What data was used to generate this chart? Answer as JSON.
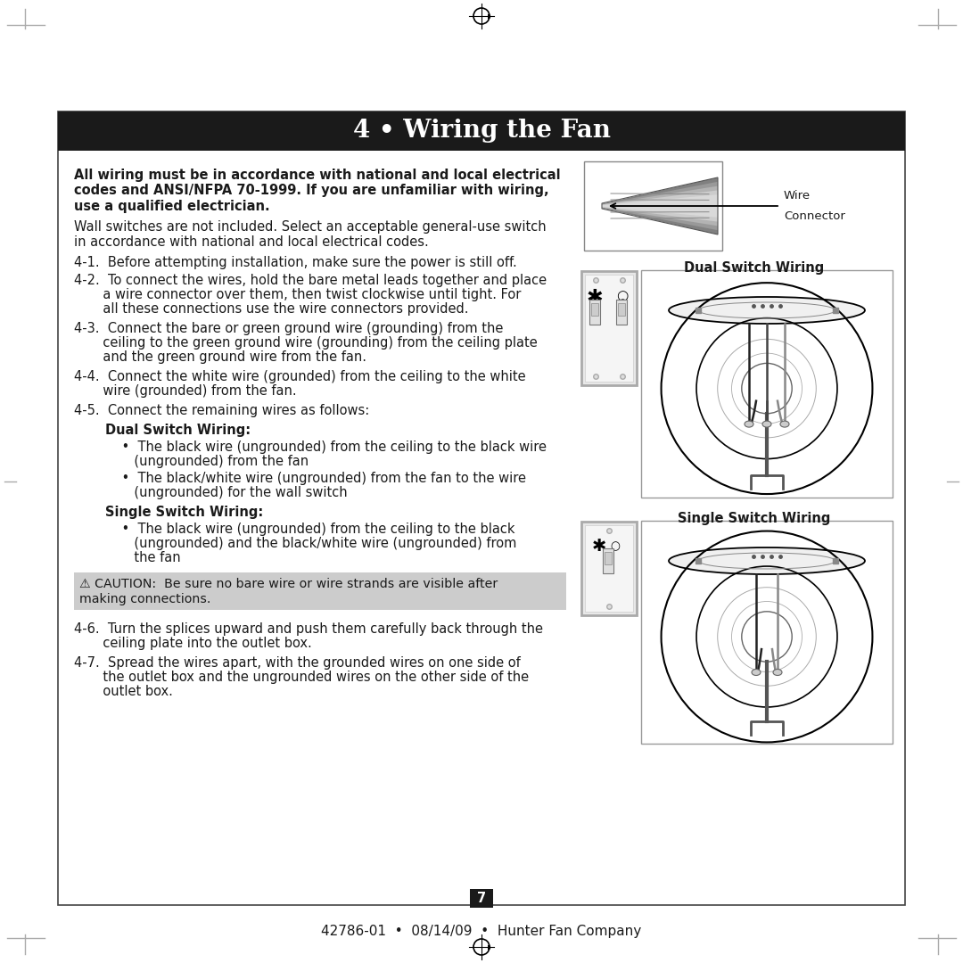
{
  "page_bg": "#ffffff",
  "title_bg": "#1a1a1a",
  "title_text": "4 • Wiring the Fan",
  "title_color": "#ffffff",
  "title_fontsize": 20,
  "bold_intro": "All wiring must be in accordance with national and local electrical\ncodes and ANSI/NFPA 70-1999. If you are unfamiliar with wiring,\nuse a qualified electrician.",
  "intro_text": "Wall switches are not included. Select an acceptable general-use switch\nin accordance with national and local electrical codes.",
  "step1": "4-1.  Before attempting installation, make sure the power is still off.",
  "step2_line1": "4-2.  To connect the wires, hold the bare metal leads together and place",
  "step2_line2": "       a wire connector over them, then twist clockwise until tight. For",
  "step2_line3": "       all these connections use the wire connectors provided.",
  "step3_line1": "4-3.  Connect the bare or green ground wire (grounding) from the",
  "step3_line2": "       ceiling to the green ground wire (grounding) from the ceiling plate",
  "step3_line3": "       and the green ground wire from the fan.",
  "step4_line1": "4-4.  Connect the white wire (grounded) from the ceiling to the white",
  "step4_line2": "       wire (grounded) from the fan.",
  "step5": "4-5.  Connect the remaining wires as follows:",
  "dual_label": "Dual Switch Wiring:",
  "dual_b1_1": "    •  The black wire (ungrounded) from the ceiling to the black wire",
  "dual_b1_2": "       (ungrounded) from the fan",
  "dual_b2_1": "    •  The black/white wire (ungrounded) from the fan to the wire",
  "dual_b2_2": "       (ungrounded) for the wall switch",
  "single_label": "Single Switch Wiring:",
  "single_b1_1": "    •  The black wire (ungrounded) from the ceiling to the black",
  "single_b1_2": "       (ungrounded) and the black/white wire (ungrounded) from",
  "single_b1_3": "       the fan",
  "caution_line1": "⚠ CAUTION:  Be sure no bare wire or wire strands are visible after",
  "caution_line2": "making connections.",
  "caution_bg": "#cccccc",
  "step6_line1": "4-6.  Turn the splices upward and push them carefully back through the",
  "step6_line2": "       ceiling plate into the outlet box.",
  "step7_line1": "4-7.  Spread the wires apart, with the grounded wires on one side of",
  "step7_line2": "       the outlet box and the ungrounded wires on the other side of the",
  "step7_line3": "       outlet box.",
  "footer_text": "42786-01  •  08/14/09  •  Hunter Fan Company",
  "page_number": "7",
  "wire_connector_label_1": "Wire",
  "wire_connector_label_2": "Connector",
  "dual_switch_wiring_label": "Dual Switch Wiring",
  "single_switch_wiring_label": "Single Switch Wiring",
  "mark_color": "#aaaaaa",
  "content_border": "#444444",
  "text_color": "#1a1a1a",
  "body_fs": 10.5
}
